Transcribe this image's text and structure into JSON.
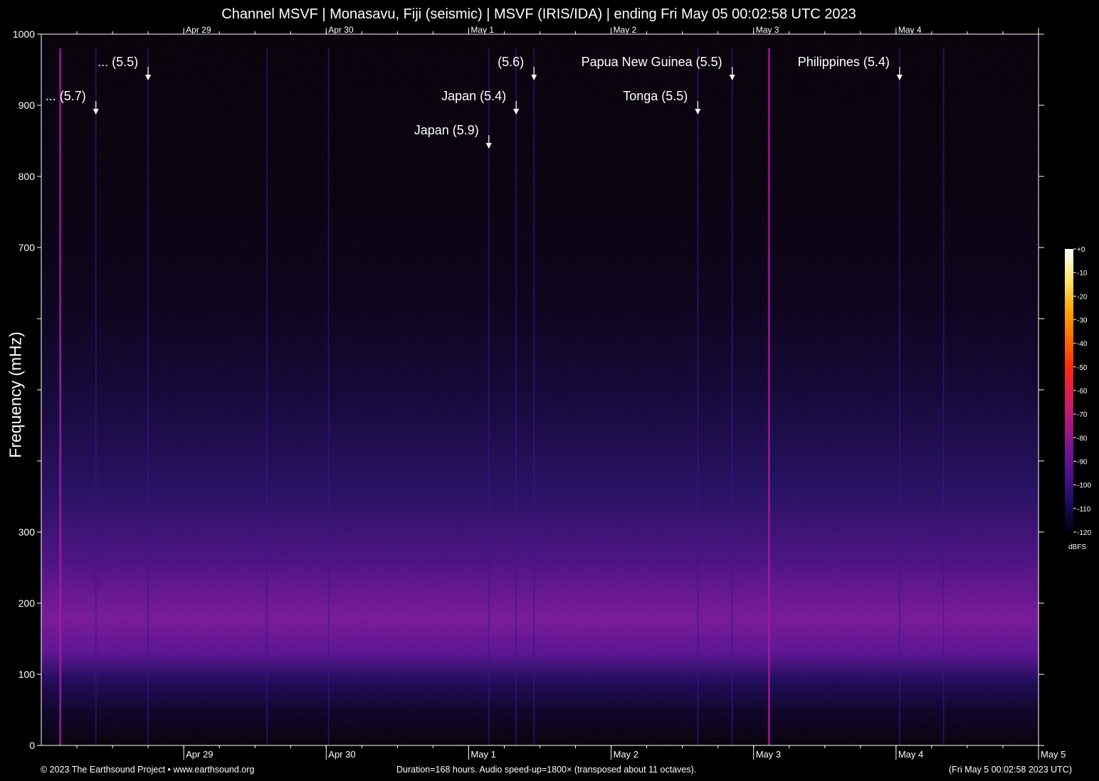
{
  "header": {
    "title": "Channel MSVF | Monasavu, Fiji (seismic) | MSVF (IRIS/IDA) | ending Fri May 05 00:02:58 UTC 2023"
  },
  "footer": {
    "copyright": "© 2023 The Earthsound Project • www.earthsound.org",
    "duration": "Duration=168 hours. Audio speed-up=1800× (transposed about 11 octaves).",
    "timestamp": "(Fri May  5 00:02:58 2023 UTC)"
  },
  "chart_data": {
    "type": "heatmap",
    "title": "Channel MSVF | Monasavu, Fiji (seismic) | MSVF (IRIS/IDA) | ending Fri May 05 00:02:58 UTC 2023",
    "xlabel": "",
    "ylabel": "Frequency (mHz)",
    "x_range_hours": [
      0,
      168
    ],
    "ylim": [
      0,
      1000
    ],
    "y_ticks": [
      0,
      100,
      200,
      300,
      400,
      500,
      600,
      700,
      800,
      900,
      1000
    ],
    "y_tick_labels": [
      "0",
      "100",
      "200",
      "300",
      "",
      "",
      "",
      "700",
      "800",
      "900",
      "1000"
    ],
    "x_day_ticks": [
      {
        "label": "Apr 29",
        "hour": 24
      },
      {
        "label": "Apr 30",
        "hour": 48
      },
      {
        "label": "May  1",
        "hour": 72
      },
      {
        "label": "May  2",
        "hour": 96
      },
      {
        "label": "May  3",
        "hour": 120
      },
      {
        "label": "May  4",
        "hour": 144
      },
      {
        "label": "May  5",
        "hour": 168
      }
    ],
    "x_minor_tick_interval_hours": 6,
    "events": [
      {
        "label": "... (5.7)",
        "hour": 9.2,
        "row": 1
      },
      {
        "label": "... (5.5)",
        "hour": 18.0,
        "row": 0
      },
      {
        "label": "Japan (5.9)",
        "hour": 75.4,
        "row": 2
      },
      {
        "label": "Japan (5.4)",
        "hour": 80.0,
        "row": 1
      },
      {
        "label": "(5.6)",
        "hour": 83.0,
        "row": 0
      },
      {
        "label": "Tonga (5.5)",
        "hour": 110.6,
        "row": 1
      },
      {
        "label": "Papua New Guinea (5.5)",
        "hour": 116.4,
        "row": 0
      },
      {
        "label": "Philippines (5.4)",
        "hour": 144.6,
        "row": 0
      }
    ],
    "colorbar": {
      "unit": "dBFS",
      "ticks": [
        "+0",
        "-10",
        "-20",
        "-30",
        "-40",
        "-50",
        "-60",
        "-70",
        "-80",
        "-90",
        "-100",
        "-110",
        "-120"
      ],
      "colors": [
        "#000010",
        "#1a0a5a",
        "#3b1290",
        "#6a15a0",
        "#9a1a8a",
        "#c8207a",
        "#e82050",
        "#ff3a10",
        "#ff7000",
        "#ffa000",
        "#ffd030",
        "#fff090",
        "#ffffff"
      ]
    },
    "vertical_streaks_hours": [
      3.2,
      9.2,
      18.0,
      38.0,
      48.4,
      75.4,
      80.0,
      83.0,
      110.6,
      116.4,
      122.6,
      144.6,
      152.0
    ],
    "noise_band_mHz": [
      110,
      300
    ]
  }
}
